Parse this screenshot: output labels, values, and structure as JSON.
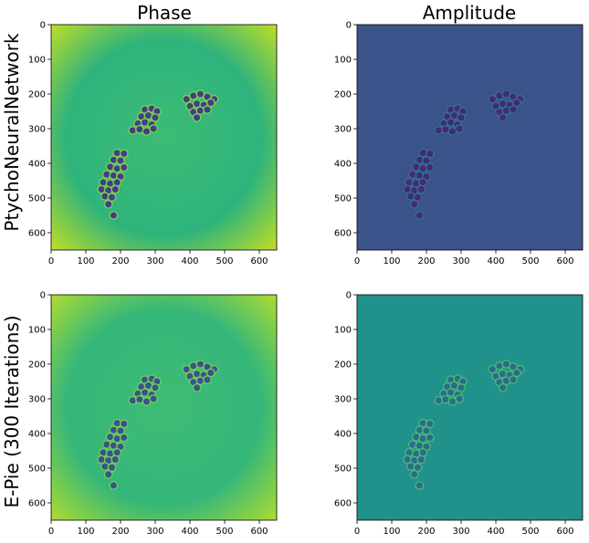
{
  "figure": {
    "column_titles": [
      "Phase",
      "Amplitude"
    ],
    "row_labels": [
      "PtychoNeuralNetwork",
      "E-Pie (300 Iterations)"
    ]
  },
  "chart_data": [
    {
      "type": "heatmap",
      "title": "Phase",
      "row_label": "PtychoNeuralNetwork",
      "xlabel": "",
      "ylabel": "",
      "xlim": [
        0,
        650
      ],
      "ylim": [
        650,
        0
      ],
      "x_ticks": [
        0,
        100,
        200,
        300,
        400,
        500,
        600
      ],
      "y_ticks": [
        0,
        100,
        200,
        300,
        400,
        500,
        600
      ],
      "colormap": "viridis",
      "colors": {
        "background": "#2eb37c",
        "center": "#3cbc74",
        "edge": "#c8e020",
        "dark": "#433e85",
        "ring": "#7ad151"
      }
    },
    {
      "type": "heatmap",
      "title": "Amplitude",
      "row_label": "PtychoNeuralNetwork",
      "xlabel": "",
      "ylabel": "",
      "xlim": [
        0,
        650
      ],
      "ylim": [
        650,
        0
      ],
      "x_ticks": [
        0,
        100,
        200,
        300,
        400,
        500,
        600
      ],
      "y_ticks": [
        0,
        100,
        200,
        300,
        400,
        500,
        600
      ],
      "colormap": "viridis",
      "colors": {
        "background": "#3b528b",
        "center": "#3b528b",
        "edge": "#3b528b",
        "dark": "#472878",
        "ring": "#2c728e"
      }
    },
    {
      "type": "heatmap",
      "title": "",
      "row_label": "E-Pie (300 Iterations)",
      "xlabel": "",
      "ylabel": "",
      "xlim": [
        0,
        650
      ],
      "ylim": [
        650,
        0
      ],
      "x_ticks": [
        0,
        100,
        200,
        300,
        400,
        500,
        600
      ],
      "y_ticks": [
        0,
        100,
        200,
        300,
        400,
        500,
        600
      ],
      "colormap": "viridis",
      "colors": {
        "background": "#35b779",
        "center": "#3dbc74",
        "edge": "#b5de2b",
        "dark": "#3b528b",
        "ring": "#6ece58"
      }
    },
    {
      "type": "heatmap",
      "title": "",
      "row_label": "E-Pie (300 Iterations)",
      "xlabel": "",
      "ylabel": "",
      "xlim": [
        0,
        650
      ],
      "ylim": [
        650,
        0
      ],
      "x_ticks": [
        0,
        100,
        200,
        300,
        400,
        500,
        600
      ],
      "y_ticks": [
        0,
        100,
        200,
        300,
        400,
        500,
        600
      ],
      "colormap": "viridis",
      "colors": {
        "background": "#21918c",
        "center": "#21918c",
        "edge": "#21918c",
        "dark": "#31688e",
        "ring": "#3fbc73"
      }
    }
  ],
  "features": {
    "clusters": [
      {
        "name": "upper-right",
        "dots": [
          [
            390,
            215
          ],
          [
            410,
            205
          ],
          [
            430,
            200
          ],
          [
            450,
            208
          ],
          [
            470,
            215
          ],
          [
            400,
            235
          ],
          [
            420,
            228
          ],
          [
            440,
            232
          ],
          [
            460,
            225
          ],
          [
            410,
            252
          ],
          [
            430,
            248
          ],
          [
            450,
            245
          ],
          [
            420,
            268
          ]
        ]
      },
      {
        "name": "middle",
        "dots": [
          [
            270,
            245
          ],
          [
            290,
            242
          ],
          [
            305,
            250
          ],
          [
            260,
            265
          ],
          [
            280,
            262
          ],
          [
            300,
            268
          ],
          [
            250,
            285
          ],
          [
            270,
            282
          ],
          [
            290,
            288
          ],
          [
            235,
            305
          ],
          [
            255,
            302
          ],
          [
            275,
            308
          ],
          [
            295,
            300
          ]
        ]
      },
      {
        "name": "lower-left",
        "dots": [
          [
            190,
            370
          ],
          [
            210,
            372
          ],
          [
            180,
            390
          ],
          [
            200,
            392
          ],
          [
            170,
            410
          ],
          [
            190,
            415
          ],
          [
            210,
            412
          ],
          [
            160,
            432
          ],
          [
            180,
            435
          ],
          [
            200,
            438
          ],
          [
            150,
            455
          ],
          [
            170,
            458
          ],
          [
            190,
            455
          ],
          [
            145,
            475
          ],
          [
            165,
            478
          ],
          [
            185,
            475
          ],
          [
            155,
            495
          ],
          [
            175,
            498
          ],
          [
            165,
            518
          ],
          [
            180,
            550
          ]
        ]
      }
    ]
  }
}
